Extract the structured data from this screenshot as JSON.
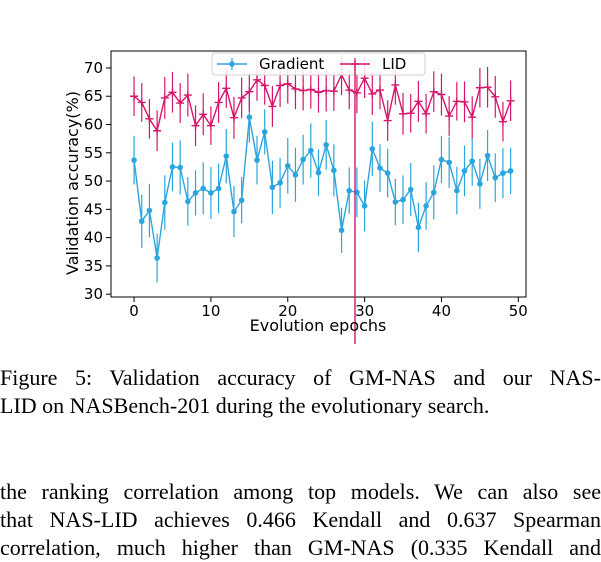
{
  "figure": {
    "chart_data": {
      "type": "line",
      "xlabel": "Evolution epochs",
      "ylabel": "Validation accuracy(%)",
      "xlim": [
        -3,
        51
      ],
      "ylim": [
        29.5,
        73
      ],
      "xticks": [
        0,
        10,
        20,
        30,
        40,
        50
      ],
      "yticks": [
        30,
        35,
        40,
        45,
        50,
        55,
        60,
        65,
        70
      ],
      "grid": false,
      "legend_position": "top-center",
      "x": [
        0,
        1,
        2,
        3,
        4,
        5,
        6,
        7,
        8,
        9,
        10,
        11,
        12,
        13,
        14,
        15,
        16,
        17,
        18,
        19,
        20,
        21,
        22,
        23,
        24,
        25,
        26,
        27,
        28,
        29,
        30,
        31,
        32,
        33,
        34,
        35,
        36,
        37,
        38,
        39,
        40,
        41,
        42,
        43,
        44,
        45,
        46,
        47,
        48,
        49
      ],
      "series": [
        {
          "name": "Gradient",
          "color": "#2ca4dc",
          "marker": "circle",
          "values": [
            53.7,
            42.9,
            44.8,
            36.4,
            46.2,
            52.5,
            52.4,
            46.4,
            47.9,
            48.7,
            47.9,
            48.7,
            54.4,
            44.6,
            46.6,
            61.3,
            53.7,
            58.7,
            48.9,
            49.7,
            52.7,
            51.1,
            53.8,
            55.4,
            51.5,
            56.4,
            51.9,
            41.3,
            48.3,
            48.0,
            45.6,
            55.7,
            52.3,
            51.4,
            46.3,
            46.7,
            48.5,
            41.8,
            45.6,
            48.0,
            53.8,
            53.3,
            48.3,
            51.8,
            53.5,
            49.5,
            54.5,
            50.6,
            51.4,
            51.8
          ],
          "errors": [
            4.3,
            4.7,
            4.7,
            4.3,
            4.8,
            4.3,
            4.8,
            4.3,
            4.0,
            4.6,
            4.6,
            4.4,
            4.8,
            4.5,
            4.1,
            4.5,
            4.3,
            4.0,
            4.7,
            4.4,
            4.9,
            4.8,
            4.4,
            4.8,
            4.1,
            4.4,
            4.6,
            4.0,
            4.1,
            4.4,
            4.5,
            4.8,
            4.2,
            4.3,
            4.1,
            4.3,
            4.7,
            4.4,
            4.2,
            4.8,
            4.2,
            4.5,
            4.2,
            4.5,
            4.3,
            4.4,
            4.5,
            4.3,
            4.4,
            4.1
          ]
        },
        {
          "name": "LID",
          "color": "#d6156d",
          "marker": "plus",
          "values": [
            65.0,
            63.9,
            61.0,
            58.9,
            64.7,
            65.7,
            63.8,
            65.2,
            59.8,
            61.8,
            59.8,
            63.9,
            66.4,
            61.2,
            64.7,
            65.8,
            67.9,
            66.9,
            63.2,
            66.9,
            67.2,
            66.3,
            66.0,
            66.2,
            65.7,
            66.0,
            65.9,
            68.8,
            66.1,
            65.6,
            68.2,
            65.4,
            66.1,
            60.7,
            67.0,
            61.9,
            62.0,
            64.1,
            61.9,
            65.8,
            65.3,
            61.5,
            64.1,
            64.0,
            61.3,
            66.5,
            66.6,
            64.9,
            60.5,
            64.2
          ],
          "errors": [
            3.5,
            3.4,
            3.5,
            3.6,
            3.7,
            3.6,
            3.5,
            3.8,
            3.6,
            3.7,
            3.4,
            3.6,
            3.5,
            3.7,
            3.6,
            3.5,
            3.7,
            3.4,
            3.6,
            3.8,
            3.5,
            3.6,
            3.5,
            3.4,
            3.6,
            3.7,
            3.5,
            3.6,
            3.4,
            3.6,
            3.5,
            3.7,
            3.4,
            3.6,
            3.5,
            3.7,
            3.4,
            3.6,
            3.5,
            3.6,
            3.7,
            3.5,
            3.4,
            3.6,
            3.7,
            3.5,
            3.6,
            3.7,
            3.5,
            3.6
          ]
        }
      ]
    }
  },
  "caption": {
    "line1": "Figure 5: Validation accuracy of GM-NAS and our NAS-",
    "line2": "LID on NASBench-201 during the evolutionary search."
  },
  "body": {
    "line1": "the ranking correlation among top models. We can also see",
    "line2": "that NAS-LID achieves 0.466 Kendall and 0.637 Spearman",
    "line3": "correlation, much higher than GM-NAS (0.335 Kendall and"
  }
}
